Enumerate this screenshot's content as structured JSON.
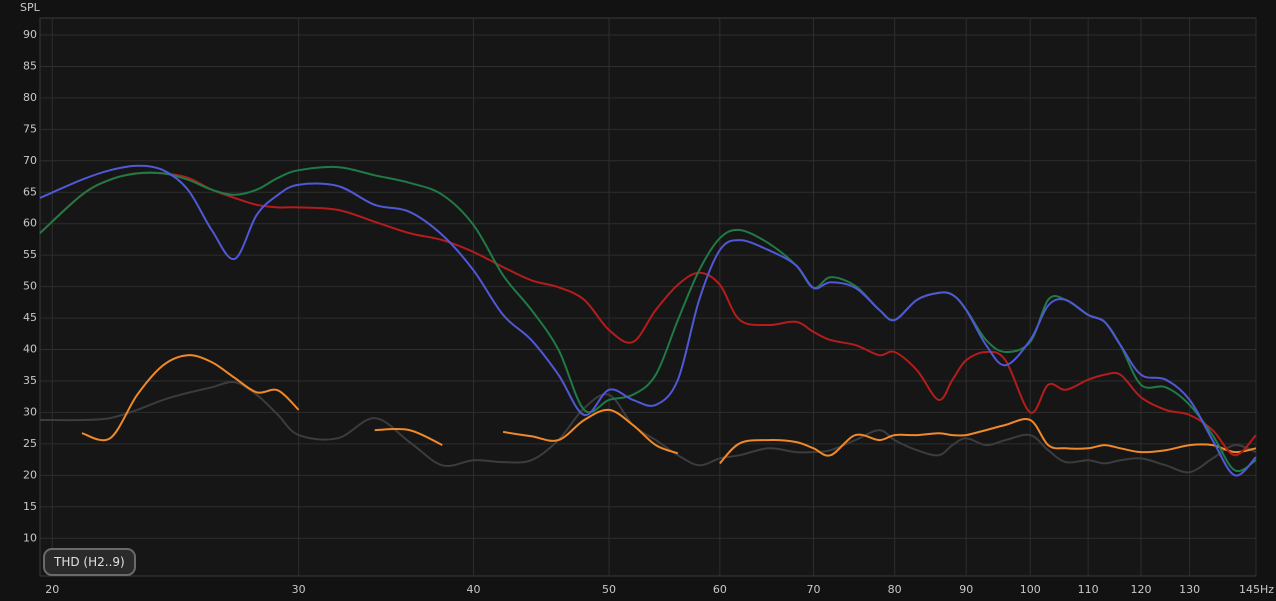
{
  "chart_data": {
    "type": "line",
    "y_label": "SPL",
    "button": "THD (H2..9)",
    "log_x": true,
    "grid": true,
    "xlim": [
      19.6,
      145
    ],
    "ylim": [
      4,
      92.7
    ],
    "xticks": [
      20,
      30,
      40,
      50,
      60,
      70,
      80,
      90,
      100,
      110,
      120,
      130,
      {
        "value": 145,
        "label": "145Hz"
      }
    ],
    "yticks": [
      10,
      15,
      20,
      25,
      30,
      35,
      40,
      45,
      50,
      55,
      60,
      65,
      70,
      75,
      80,
      85,
      90
    ],
    "x": [
      19.6,
      21,
      22,
      23,
      24,
      25,
      26,
      27,
      28,
      29,
      30,
      32,
      34,
      36,
      38,
      40,
      42,
      44,
      46,
      48,
      50,
      52,
      54,
      56,
      58,
      60,
      62,
      65,
      68,
      70,
      72,
      75,
      78,
      80,
      83,
      86,
      88,
      90,
      93,
      96,
      100,
      103,
      106,
      110,
      113,
      116,
      120,
      125,
      130,
      135,
      140,
      145
    ],
    "series": [
      {
        "color": "#3c3c3c",
        "values": [
          28.8,
          28.8,
          29.1,
          30.4,
          32,
          33.1,
          34,
          34.8,
          32.8,
          29.6,
          26.4,
          25.9,
          29.1,
          25.3,
          21.6,
          22.4,
          22.1,
          22.4,
          25.6,
          30.7,
          32.8,
          28,
          25.6,
          23.2,
          21.6,
          22.7,
          23.2,
          24.3,
          23.7,
          23.7,
          24,
          25.6,
          27.2,
          25.6,
          24,
          23.2,
          24.8,
          25.9,
          24.8,
          25.6,
          26.4,
          24,
          22.1,
          22.4,
          21.9,
          22.4,
          22.7,
          21.6,
          20.5,
          22.7,
          24.8,
          23.7
        ]
      },
      {
        "color": "#f0892a",
        "values": [
          null,
          26.7,
          25.9,
          32.8,
          37.5,
          39.1,
          38,
          35.5,
          33.2,
          33.5,
          30.4,
          null,
          27.2,
          27.2,
          24.8,
          null,
          26.9,
          26.2,
          25.6,
          28.8,
          30.4,
          28,
          24.8,
          23.5,
          null,
          21.9,
          25.1,
          25.6,
          25.3,
          24.3,
          23.2,
          26.4,
          25.6,
          26.4,
          26.4,
          26.7,
          26.4,
          26.4,
          27.2,
          28,
          28.8,
          24.8,
          24.3,
          24.3,
          24.8,
          24.3,
          23.7,
          24,
          24.8,
          24.8,
          23.7,
          24.3
        ]
      },
      {
        "color": "#b51c1c",
        "values": [
          58.5,
          64.6,
          67,
          68,
          68,
          67.3,
          65.4,
          64.1,
          63,
          62.6,
          62.6,
          62.2,
          60.3,
          58.5,
          57.4,
          55.5,
          53.1,
          51,
          49.9,
          47.9,
          43.1,
          41.2,
          46.3,
          50.3,
          52.2,
          50.3,
          44.7,
          43.9,
          44.4,
          42.8,
          41.5,
          40.7,
          39.1,
          39.6,
          36.7,
          32,
          35.2,
          38.3,
          39.6,
          38.3,
          30,
          34.4,
          33.6,
          35.2,
          36,
          36,
          32.4,
          30.4,
          29.6,
          27.2,
          23.2,
          26.4
        ]
      },
      {
        "color": "#1f7a45",
        "values": [
          58.5,
          64.6,
          67,
          68,
          68,
          67,
          65.4,
          64.6,
          65.4,
          67.3,
          68.5,
          69,
          67.7,
          66.5,
          64.6,
          59.8,
          51.8,
          46.3,
          40,
          30.4,
          32,
          32.8,
          36,
          44.7,
          52.6,
          57.7,
          59,
          56.9,
          53.4,
          49.8,
          51.5,
          50.1,
          46.3,
          44.7,
          47.9,
          49,
          48.7,
          46.3,
          41.5,
          39.6,
          41.2,
          47.9,
          47.9,
          45.5,
          44.4,
          40.7,
          34.4,
          34,
          31.2,
          26.4,
          20.8,
          22.4
        ]
      },
      {
        "color": "#5058d6",
        "values": [
          64.1,
          67,
          68.5,
          69.2,
          68.5,
          65.4,
          59,
          54.4,
          61.4,
          64.6,
          66.2,
          66,
          63,
          61.9,
          58.2,
          52.6,
          45.5,
          41.5,
          36,
          29.6,
          33.6,
          32,
          31.2,
          35.2,
          47.9,
          55.8,
          57.4,
          55.8,
          53.4,
          49.8,
          50.7,
          49.8,
          46.3,
          44.7,
          47.9,
          49,
          48.7,
          46.3,
          40.7,
          37.5,
          41.5,
          47,
          47.9,
          45.5,
          44.4,
          40.7,
          36,
          35.2,
          32,
          25.6,
          20,
          22.9
        ]
      }
    ]
  }
}
